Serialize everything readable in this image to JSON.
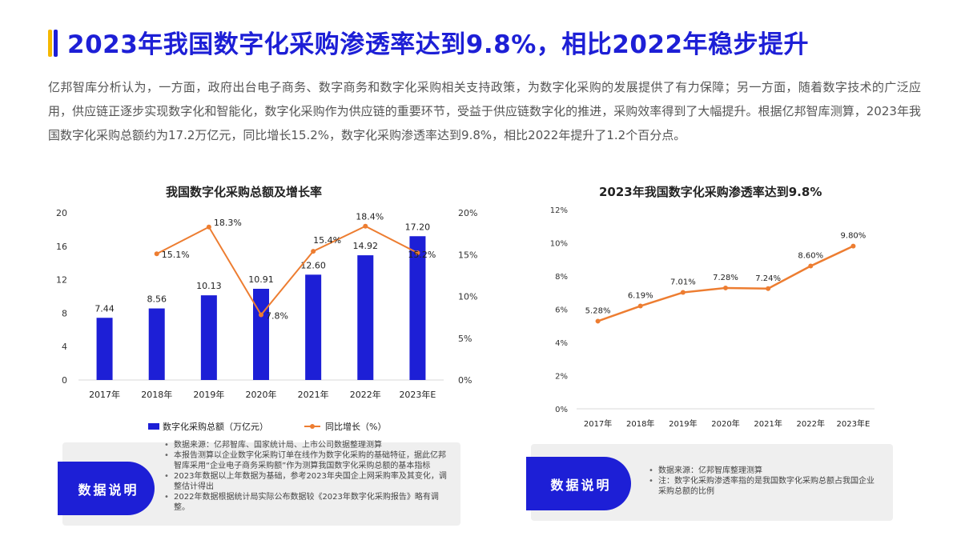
{
  "header": {
    "title": "2023年我国数字化采购渗透率达到9.8%，相比2022年稳步提升"
  },
  "intro": "亿邦智库分析认为，一方面，政府出台电子商务、数字商务和数字化采购相关支持政策，为数字化采购的发展提供了有力保障；另一方面，随着数字技术的广泛应用，供应链正逐步实现数字化和智能化，数字化采购作为供应链的重要环节，受益于供应链数字化的推进，采购效率得到了大幅提升。根据亿邦智库测算，2023年我国数字化采购总额约为17.2万亿元，同比增长15.2%，数字化采购渗透率达到9.8%，相比2022年提升了1.2个百分点。",
  "colors": {
    "accent": "#1d1fd6",
    "accent_yellow": "#f5b800",
    "line": "#ed7d31"
  },
  "chart_data": [
    {
      "type": "bar",
      "title": "我国数字化采购总额及增长率",
      "categories": [
        "2017年",
        "2018年",
        "2019年",
        "2020年",
        "2021年",
        "2022年",
        "2023年E"
      ],
      "series": [
        {
          "name": "数字化采购总额（万亿元）",
          "type": "bar",
          "axis": "left",
          "values": [
            7.44,
            8.56,
            10.13,
            10.91,
            12.6,
            14.92,
            17.2
          ],
          "labels": [
            "7.44",
            "8.56",
            "10.13",
            "10.91",
            "12.60",
            "14.92",
            "17.20"
          ]
        },
        {
          "name": "同比增长（%）",
          "type": "line",
          "axis": "right",
          "values": [
            null,
            15.1,
            18.3,
            7.8,
            15.4,
            18.4,
            15.2
          ],
          "labels": [
            "",
            "15.1%",
            "18.3%",
            "7.8%",
            "15.4%",
            "18.4%",
            "15.2%"
          ]
        }
      ],
      "left_ticks": [
        "0",
        "4",
        "8",
        "12",
        "16",
        "20"
      ],
      "right_ticks": [
        "0%",
        "5%",
        "10%",
        "15%",
        "20%"
      ],
      "ylim_left": [
        0,
        20
      ],
      "ylim_right": [
        0,
        20
      ],
      "legend": "bottom",
      "grid": false
    },
    {
      "type": "line",
      "title": "2023年我国数字化采购渗透率达到9.8%",
      "categories": [
        "2017年",
        "2018年",
        "2019年",
        "2020年",
        "2021年",
        "2022年",
        "2023年E"
      ],
      "series": [
        {
          "values": [
            5.28,
            6.19,
            7.01,
            7.28,
            7.24,
            8.6,
            9.8
          ],
          "labels": [
            "5.28%",
            "6.19%",
            "7.01%",
            "7.28%",
            "7.24%",
            "8.60%",
            "9.80%"
          ]
        }
      ],
      "y_ticks": [
        "0%",
        "2%",
        "4%",
        "6%",
        "8%",
        "10%",
        "12%"
      ],
      "ylim": [
        0,
        12
      ],
      "grid": false
    }
  ],
  "notes_left": {
    "badge": "数据说明",
    "items": [
      "数据来源：亿邦智库、国家统计局、上市公司数据整理测算",
      "本报告测算以企业数字化采购订单在线作为数字化采购的基础特征，据此亿邦智库采用“企业电子商务采购额”作为测算我国数字化采购总额的基本指标",
      "2023年数据以上年数据为基础，参考2023年央国企上网采购率及其变化，调整估计得出",
      "2022年数据根据统计局实际公布数据较《2023年数字化采购报告》略有调整。"
    ]
  },
  "notes_right": {
    "badge": "数据说明",
    "items": [
      "数据来源：亿邦智库整理测算",
      "注：数字化采购渗透率指的是我国数字化采购总额占我国企业采购总额的比例"
    ]
  }
}
